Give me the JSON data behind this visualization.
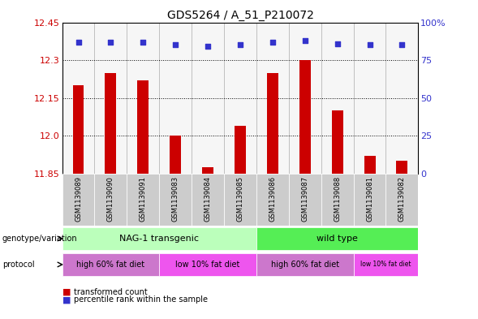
{
  "title": "GDS5264 / A_51_P210072",
  "samples": [
    "GSM1139089",
    "GSM1139090",
    "GSM1139091",
    "GSM1139083",
    "GSM1139084",
    "GSM1139085",
    "GSM1139086",
    "GSM1139087",
    "GSM1139088",
    "GSM1139081",
    "GSM1139082"
  ],
  "transformed_counts": [
    12.2,
    12.25,
    12.22,
    12.0,
    11.875,
    12.04,
    12.25,
    12.3,
    12.1,
    11.92,
    11.9
  ],
  "percentile_ranks": [
    87,
    87,
    87,
    85,
    84,
    85,
    87,
    88,
    86,
    85,
    85
  ],
  "ylim_left": [
    11.85,
    12.45
  ],
  "ylim_right": [
    0,
    100
  ],
  "yticks_left": [
    11.85,
    12.0,
    12.15,
    12.3,
    12.45
  ],
  "yticks_right": [
    0,
    25,
    50,
    75,
    100
  ],
  "bar_color": "#cc0000",
  "dot_color": "#3333cc",
  "genotype_groups": [
    {
      "label": "NAG-1 transgenic",
      "start": 0,
      "end": 5,
      "color": "#bbffbb"
    },
    {
      "label": "wild type",
      "start": 6,
      "end": 10,
      "color": "#55ee55"
    }
  ],
  "protocol_groups": [
    {
      "label": "high 60% fat diet",
      "start": 0,
      "end": 2,
      "color": "#cc77cc"
    },
    {
      "label": "low 10% fat diet",
      "start": 3,
      "end": 5,
      "color": "#ee55ee"
    },
    {
      "label": "high 60% fat diet",
      "start": 6,
      "end": 8,
      "color": "#cc77cc"
    },
    {
      "label": "low 10% fat diet",
      "start": 9,
      "end": 10,
      "color": "#ee55ee"
    }
  ],
  "legend_items": [
    {
      "label": "transformed count",
      "color": "#cc0000"
    },
    {
      "label": "percentile rank within the sample",
      "color": "#3333cc"
    }
  ],
  "background_color": "#ffffff",
  "tick_label_color_left": "#cc0000",
  "tick_label_color_right": "#3333cc",
  "title_fontsize": 10,
  "axis_fontsize": 8,
  "bar_width": 0.35,
  "sample_area_color": "#cccccc",
  "grid_color": "#000000"
}
